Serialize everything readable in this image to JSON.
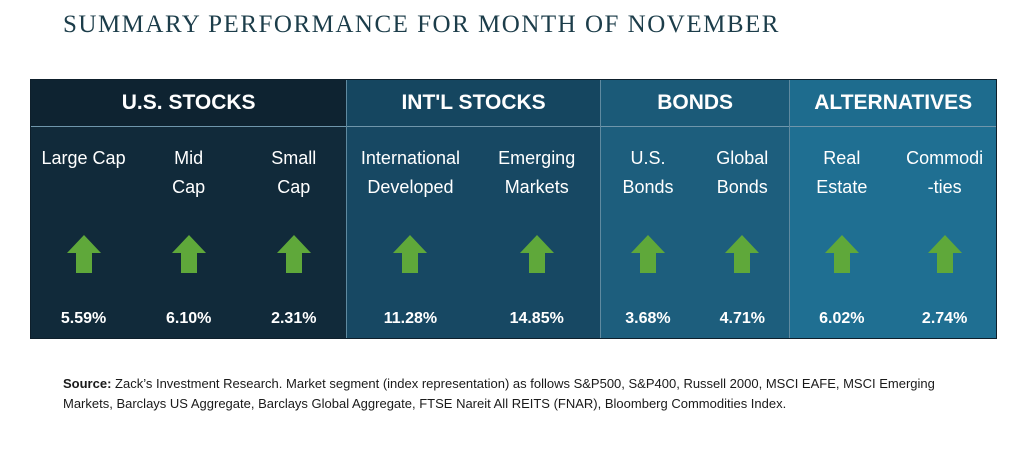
{
  "title": "SUMMARY PERFORMANCE FOR MONTH OF NOVEMBER",
  "groups": [
    {
      "name": "U.S. STOCKS",
      "items": [
        {
          "label": "Large Cap",
          "value": "5.59%",
          "direction": "up"
        },
        {
          "label": "Mid\nCap",
          "value": "6.10%",
          "direction": "up"
        },
        {
          "label": "Small\nCap",
          "value": "2.31%",
          "direction": "up"
        }
      ]
    },
    {
      "name": "INT'L STOCKS",
      "items": [
        {
          "label": "International\nDeveloped",
          "value": "11.28%",
          "direction": "up"
        },
        {
          "label": "Emerging\nMarkets",
          "value": "14.85%",
          "direction": "up"
        }
      ]
    },
    {
      "name": "BONDS",
      "items": [
        {
          "label": "U.S.\nBonds",
          "value": "3.68%",
          "direction": "up"
        },
        {
          "label": "Global\nBonds",
          "value": "4.71%",
          "direction": "up"
        }
      ]
    },
    {
      "name": "ALTERNATIVES",
      "items": [
        {
          "label": "Real\nEstate",
          "value": "6.02%",
          "direction": "up"
        },
        {
          "label": "Commodi\n-ties",
          "value": "2.74%",
          "direction": "up"
        }
      ]
    }
  ],
  "arrow_icon": "up-arrow-icon",
  "arrow_color": "#5fa83a",
  "source": {
    "label": "Source:",
    "text": " Zack’s Investment Research. Market segment (index representation) as follows S&P500, S&P400, Russell 2000, MSCI EAFE, MSCI Emerging Markets, Barclays US Aggregate, Barclays Global Aggregate, FTSE Nareit All REITS (FNAR), Bloomberg Commodities Index."
  }
}
